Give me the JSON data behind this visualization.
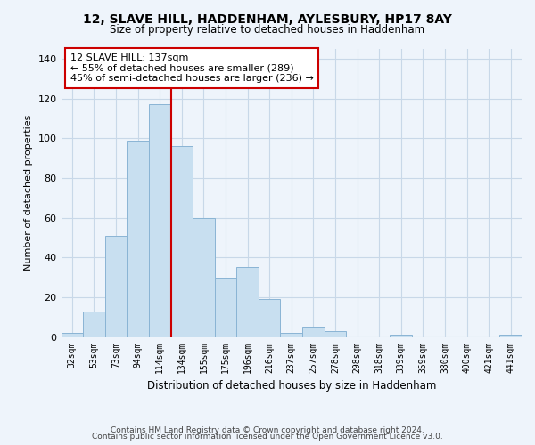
{
  "title1": "12, SLAVE HILL, HADDENHAM, AYLESBURY, HP17 8AY",
  "title2": "Size of property relative to detached houses in Haddenham",
  "xlabel": "Distribution of detached houses by size in Haddenham",
  "ylabel": "Number of detached properties",
  "categories": [
    "32sqm",
    "53sqm",
    "73sqm",
    "94sqm",
    "114sqm",
    "134sqm",
    "155sqm",
    "175sqm",
    "196sqm",
    "216sqm",
    "237sqm",
    "257sqm",
    "278sqm",
    "298sqm",
    "318sqm",
    "339sqm",
    "359sqm",
    "380sqm",
    "400sqm",
    "421sqm",
    "441sqm"
  ],
  "values": [
    2,
    13,
    51,
    99,
    117,
    96,
    60,
    30,
    35,
    19,
    2,
    5,
    3,
    0,
    0,
    1,
    0,
    0,
    0,
    0,
    1
  ],
  "bar_color": "#c8dff0",
  "bar_edge_color": "#8ab4d4",
  "vline_color": "#cc0000",
  "annotation_text": "12 SLAVE HILL: 137sqm\n← 55% of detached houses are smaller (289)\n45% of semi-detached houses are larger (236) →",
  "annotation_box_color": "#ffffff",
  "annotation_box_edge": "#cc0000",
  "ylim": [
    0,
    145
  ],
  "yticks": [
    0,
    20,
    40,
    60,
    80,
    100,
    120,
    140
  ],
  "footer1": "Contains HM Land Registry data © Crown copyright and database right 2024.",
  "footer2": "Contains public sector information licensed under the Open Government Licence v3.0.",
  "background_color": "#eef4fb",
  "grid_color": "#c8d8e8"
}
